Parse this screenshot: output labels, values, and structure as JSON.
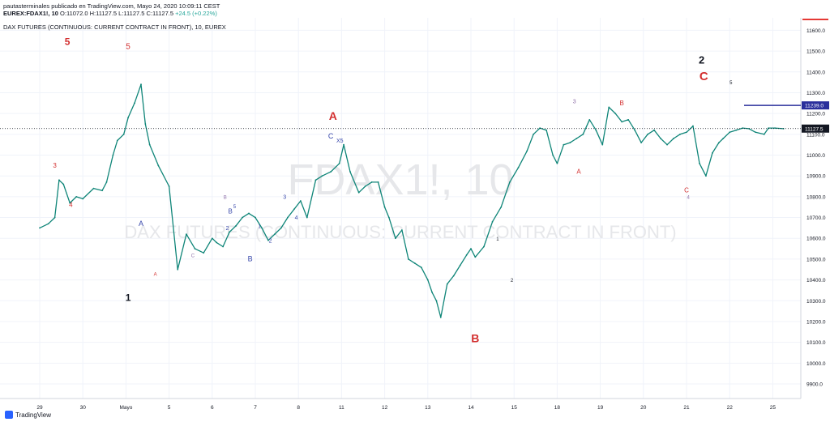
{
  "header": {
    "line1": "pautasterminales publicado en TradingView.com, Mayo 24, 2020 10:09:11 CEST",
    "symbol": "EUREX:FDAX1!, 10",
    "ohlc": "O:11072.0 H:11127.5 L:11127.5 C:11127.5",
    "change": "+24.5 (+0.22%)"
  },
  "footer": {
    "brand": "TradingView"
  },
  "chart_data": {
    "type": "line",
    "title": "DAX FUTURES (CONTINUOUS: CURRENT CONTRACT IN FRONT), 10, EUREX",
    "watermark_symbol": "FDAX1!, 10",
    "watermark_desc": "DAX FUTURES (CONTINUOUS: CURRENT CONTRACT IN FRONT)",
    "x_ticks": [
      "29",
      "30",
      "Mayo",
      "5",
      "6",
      "7",
      "8",
      "11",
      "12",
      "13",
      "14",
      "15",
      "18",
      "19",
      "20",
      "21",
      "22",
      "25"
    ],
    "ylim": [
      9830,
      11660
    ],
    "y_ticks": [
      9900,
      10000,
      10100,
      10200,
      10300,
      10400,
      10500,
      10600,
      10700,
      10800,
      10900,
      11000,
      11100,
      11200,
      11300,
      11400,
      11500,
      11600
    ],
    "y_tick_labels": [
      "9900.0",
      "10000.0",
      "10100.0",
      "10200.0",
      "10300.0",
      "10400.0",
      "10500.0",
      "10600.0",
      "10700.0",
      "10800.0",
      "10900.0",
      "11000.0",
      "11100.0",
      "11200.0",
      "11300.0",
      "11400.0",
      "11500.0",
      "11600.0"
    ],
    "series": [
      {
        "color": "#0f8578",
        "x": [
          0,
          0.2,
          0.35,
          0.45,
          0.55,
          0.7,
          0.85,
          1.0,
          1.25,
          1.45,
          1.55,
          1.7,
          1.8,
          1.95,
          2.05,
          2.2,
          2.35,
          2.45,
          2.55,
          2.75,
          3.0,
          3.2,
          3.4,
          3.6,
          3.8,
          4.0,
          4.1,
          4.25,
          4.4,
          4.55,
          4.7,
          4.85,
          5.0,
          5.15,
          5.3,
          5.45,
          5.6,
          5.75,
          5.9,
          6.05,
          6.2,
          6.4,
          6.55,
          6.75,
          6.95,
          7.05,
          7.2,
          7.4,
          7.55,
          7.7,
          7.85,
          8.0,
          8.1,
          8.25,
          8.4,
          8.55,
          8.7,
          8.85,
          9.0,
          9.1,
          9.2,
          9.3,
          9.45,
          9.6,
          9.75,
          9.9,
          10.0,
          10.1,
          10.3,
          10.5,
          10.7,
          10.9,
          11.1,
          11.3,
          11.45,
          11.6,
          11.75,
          11.9,
          12.0,
          12.15,
          12.3,
          12.45,
          12.6,
          12.75,
          12.9,
          13.05,
          13.2,
          13.35,
          13.5,
          13.65,
          13.8,
          13.95,
          14.1,
          14.25,
          14.4,
          14.55,
          14.7,
          14.85,
          15.0,
          15.15,
          15.3,
          15.45,
          15.6,
          15.75,
          15.85,
          16.0,
          16.15,
          16.3,
          16.45,
          16.6,
          16.8,
          16.9,
          17.05,
          17.25
        ],
        "values": [
          10650,
          10670,
          10700,
          10880,
          10860,
          10770,
          10800,
          10790,
          10840,
          10830,
          10870,
          11000,
          11070,
          11100,
          11180,
          11250,
          11340,
          11150,
          11050,
          10950,
          10850,
          10450,
          10620,
          10550,
          10530,
          10600,
          10580,
          10560,
          10630,
          10660,
          10700,
          10720,
          10700,
          10650,
          10590,
          10620,
          10650,
          10700,
          10740,
          10780,
          10700,
          10880,
          10900,
          10920,
          10960,
          11050,
          10920,
          10820,
          10850,
          10870,
          10870,
          10750,
          10700,
          10600,
          10640,
          10500,
          10480,
          10460,
          10400,
          10340,
          10300,
          10220,
          10380,
          10420,
          10470,
          10520,
          10550,
          10510,
          10560,
          10680,
          10750,
          10870,
          10940,
          11020,
          11100,
          11130,
          11120,
          11000,
          10960,
          11050,
          11060,
          11080,
          11100,
          11170,
          11120,
          11050,
          11230,
          11200,
          11160,
          11170,
          11120,
          11060,
          11100,
          11120,
          11080,
          11050,
          11080,
          11100,
          11110,
          11140,
          10960,
          10900,
          11010,
          11060,
          11080,
          11110,
          11120,
          11130,
          11127,
          11110,
          11100,
          11130,
          11130,
          11127
        ]
      }
    ],
    "horizontal_lines": [
      {
        "value": 11239.0,
        "label": "11239.0",
        "color": "#2a2f9c"
      },
      {
        "value": 11127.5,
        "label": "11127.5",
        "color": "#131722"
      }
    ],
    "annotations": [
      {
        "text": "5",
        "x": 0.64,
        "y": 11530,
        "color": "#d32f2f",
        "size": 12,
        "bold": true
      },
      {
        "text": "5",
        "x": 2.05,
        "y": 11510,
        "color": "#d32f2f",
        "size": 10,
        "bold": false
      },
      {
        "text": "3",
        "x": 0.35,
        "y": 10940,
        "color": "#d32f2f",
        "size": 8,
        "bold": false
      },
      {
        "text": "4",
        "x": 0.72,
        "y": 10750,
        "color": "#d32f2f",
        "size": 8,
        "bold": false
      },
      {
        "text": "A",
        "x": 2.35,
        "y": 10660,
        "color": "#3949ab",
        "size": 9,
        "bold": false
      },
      {
        "text": "A",
        "x": 2.68,
        "y": 10420,
        "color": "#d32f2f",
        "size": 6,
        "bold": false
      },
      {
        "text": "1",
        "x": 2.05,
        "y": 10300,
        "color": "#131722",
        "size": 12,
        "bold": true
      },
      {
        "text": "C",
        "x": 3.55,
        "y": 10510,
        "color": "#8e6fa8",
        "size": 6,
        "bold": false
      },
      {
        "text": "B",
        "x": 4.3,
        "y": 10790,
        "color": "#8e6fa8",
        "size": 6,
        "bold": false
      },
      {
        "text": "B",
        "x": 4.42,
        "y": 10720,
        "color": "#3949ab",
        "size": 8,
        "bold": false
      },
      {
        "text": "5",
        "x": 4.52,
        "y": 10745,
        "color": "#3949ab",
        "size": 6,
        "bold": false
      },
      {
        "text": "2",
        "x": 4.35,
        "y": 10640,
        "color": "#3949ab",
        "size": 7,
        "bold": false
      },
      {
        "text": "B",
        "x": 4.88,
        "y": 10490,
        "color": "#3949ab",
        "size": 9,
        "bold": false
      },
      {
        "text": "1",
        "x": 5.1,
        "y": 10650,
        "color": "#3949ab",
        "size": 6,
        "bold": false
      },
      {
        "text": "2",
        "x": 5.35,
        "y": 10580,
        "color": "#3949ab",
        "size": 7,
        "bold": false
      },
      {
        "text": "3",
        "x": 5.68,
        "y": 10790,
        "color": "#3949ab",
        "size": 7,
        "bold": false
      },
      {
        "text": "4",
        "x": 5.95,
        "y": 10690,
        "color": "#3949ab",
        "size": 7,
        "bold": false
      },
      {
        "text": "A",
        "x": 6.8,
        "y": 11170,
        "color": "#d32f2f",
        "size": 14,
        "bold": true
      },
      {
        "text": "C",
        "x": 6.75,
        "y": 11080,
        "color": "#3949ab",
        "size": 9,
        "bold": false
      },
      {
        "text": "X5",
        "x": 6.96,
        "y": 11060,
        "color": "#3949ab",
        "size": 7,
        "bold": false
      },
      {
        "text": "B",
        "x": 10.1,
        "y": 10100,
        "color": "#d32f2f",
        "size": 14,
        "bold": true
      },
      {
        "text": "1",
        "x": 10.62,
        "y": 10590,
        "color": "#131722",
        "size": 6,
        "bold": false
      },
      {
        "text": "2",
        "x": 10.95,
        "y": 10390,
        "color": "#131722",
        "size": 6,
        "bold": false
      },
      {
        "text": "3",
        "x": 12.4,
        "y": 11250,
        "color": "#8e6fa8",
        "size": 7,
        "bold": false
      },
      {
        "text": "A",
        "x": 12.5,
        "y": 10910,
        "color": "#d32f2f",
        "size": 8,
        "bold": false
      },
      {
        "text": "B",
        "x": 13.5,
        "y": 11240,
        "color": "#d32f2f",
        "size": 8,
        "bold": false
      },
      {
        "text": "C",
        "x": 15.0,
        "y": 10820,
        "color": "#d32f2f",
        "size": 8,
        "bold": false
      },
      {
        "text": "4",
        "x": 15.04,
        "y": 10790,
        "color": "#8e6fa8",
        "size": 6,
        "bold": false
      },
      {
        "text": "2",
        "x": 15.35,
        "y": 11440,
        "color": "#131722",
        "size": 13,
        "bold": true
      },
      {
        "text": "C",
        "x": 15.4,
        "y": 11360,
        "color": "#d32f2f",
        "size": 15,
        "bold": true
      },
      {
        "text": "5",
        "x": 16.03,
        "y": 11340,
        "color": "#131722",
        "size": 6,
        "bold": false
      }
    ]
  }
}
